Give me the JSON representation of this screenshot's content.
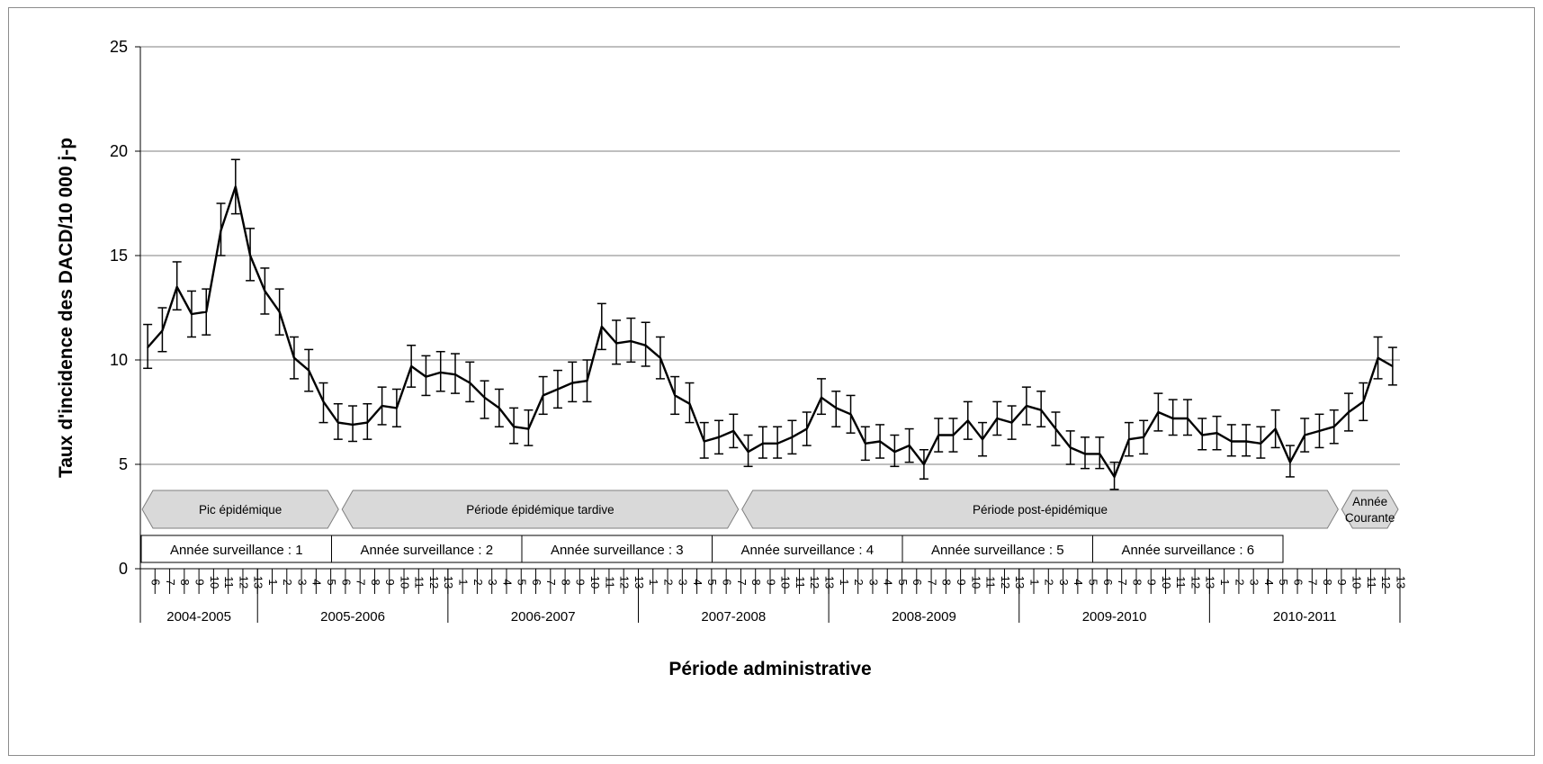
{
  "chart_data": {
    "type": "line",
    "title": "",
    "ylabel": "Taux d'incidence des  DACD/10 000 j-p",
    "xlabel": "Période administrative",
    "ylim": [
      0,
      25
    ],
    "yticks": [
      0,
      5,
      10,
      15,
      20,
      25
    ],
    "grid": true,
    "error_bars": true,
    "years": [
      {
        "label": "2004-2005",
        "periods": [
          "6",
          "7",
          "8",
          "9",
          "10",
          "11",
          "12",
          "13"
        ]
      },
      {
        "label": "2005-2006",
        "periods": [
          "1",
          "2",
          "3",
          "4",
          "5",
          "6",
          "7",
          "8",
          "9",
          "10",
          "11",
          "12",
          "13"
        ]
      },
      {
        "label": "2006-2007",
        "periods": [
          "1",
          "2",
          "3",
          "4",
          "5",
          "6",
          "7",
          "8",
          "9",
          "10",
          "11",
          "12",
          "13"
        ]
      },
      {
        "label": "2007-2008",
        "periods": [
          "1",
          "2",
          "3",
          "4",
          "5",
          "6",
          "7",
          "8",
          "9",
          "10",
          "11",
          "12",
          "13"
        ]
      },
      {
        "label": "2008-2009",
        "periods": [
          "1",
          "2",
          "3",
          "4",
          "5",
          "6",
          "7",
          "8",
          "9",
          "10",
          "11",
          "12",
          "13"
        ]
      },
      {
        "label": "2009-2010",
        "periods": [
          "1",
          "2",
          "3",
          "4",
          "5",
          "6",
          "7",
          "8",
          "9",
          "10",
          "11",
          "12",
          "13"
        ]
      },
      {
        "label": "2010-2011",
        "periods": [
          "1",
          "2",
          "3",
          "4",
          "5",
          "6",
          "7",
          "8",
          "9",
          "10",
          "11",
          "12",
          "13"
        ]
      }
    ],
    "values": [
      10.6,
      11.4,
      13.5,
      12.2,
      12.3,
      16.2,
      18.3,
      15.0,
      13.3,
      12.3,
      10.1,
      9.5,
      8.0,
      7.0,
      6.9,
      7.0,
      7.8,
      7.7,
      9.7,
      9.2,
      9.4,
      9.3,
      8.9,
      8.2,
      7.7,
      6.8,
      6.7,
      8.3,
      8.6,
      8.9,
      9.0,
      11.6,
      10.8,
      10.9,
      10.7,
      10.1,
      8.3,
      7.9,
      6.1,
      6.3,
      6.6,
      5.6,
      6.0,
      6.0,
      6.3,
      6.7,
      8.2,
      7.7,
      7.4,
      6.0,
      6.1,
      5.6,
      5.9,
      5.0,
      6.4,
      6.4,
      7.1,
      6.2,
      7.2,
      7.0,
      7.8,
      7.6,
      6.7,
      5.8,
      5.5,
      5.5,
      4.4,
      6.2,
      6.3,
      7.5,
      7.2,
      7.2,
      6.4,
      6.5,
      6.1,
      6.1,
      6.0,
      6.7,
      5.1,
      6.4,
      6.6,
      6.8,
      7.5,
      8.0,
      10.1,
      9.7
    ],
    "err_low": [
      9.6,
      10.4,
      12.4,
      11.1,
      11.2,
      15.0,
      17.0,
      13.8,
      12.2,
      11.2,
      9.1,
      8.5,
      7.0,
      6.2,
      6.1,
      6.2,
      6.9,
      6.8,
      8.7,
      8.3,
      8.5,
      8.4,
      8.0,
      7.2,
      6.8,
      6.0,
      5.9,
      7.4,
      7.7,
      8.0,
      8.0,
      10.5,
      9.8,
      9.9,
      9.7,
      9.1,
      7.4,
      7.0,
      5.3,
      5.5,
      5.8,
      4.9,
      5.3,
      5.3,
      5.5,
      5.9,
      7.4,
      6.8,
      6.5,
      5.2,
      5.3,
      4.9,
      5.1,
      4.3,
      5.6,
      5.6,
      6.2,
      5.4,
      6.4,
      6.2,
      6.9,
      6.8,
      5.9,
      5.0,
      4.8,
      4.8,
      3.8,
      5.4,
      5.5,
      6.6,
      6.4,
      6.4,
      5.7,
      5.7,
      5.4,
      5.4,
      5.3,
      5.8,
      4.4,
      5.6,
      5.8,
      6.0,
      6.6,
      7.1,
      9.1,
      8.8
    ],
    "err_high": [
      11.7,
      12.5,
      14.7,
      13.3,
      13.4,
      17.5,
      19.6,
      16.3,
      14.4,
      13.4,
      11.1,
      10.5,
      8.9,
      7.9,
      7.8,
      7.9,
      8.7,
      8.6,
      10.7,
      10.2,
      10.4,
      10.3,
      9.9,
      9.0,
      8.6,
      7.7,
      7.6,
      9.2,
      9.5,
      9.9,
      10.0,
      12.7,
      11.9,
      12.0,
      11.8,
      11.1,
      9.2,
      8.9,
      7.0,
      7.1,
      7.4,
      6.4,
      6.8,
      6.8,
      7.1,
      7.5,
      9.1,
      8.5,
      8.3,
      6.8,
      6.9,
      6.4,
      6.7,
      5.7,
      7.2,
      7.2,
      8.0,
      7.0,
      8.0,
      7.8,
      8.7,
      8.5,
      7.5,
      6.6,
      6.3,
      6.3,
      5.1,
      7.0,
      7.1,
      8.4,
      8.1,
      8.1,
      7.2,
      7.3,
      6.9,
      6.9,
      6.8,
      7.6,
      5.9,
      7.2,
      7.4,
      7.6,
      8.4,
      8.9,
      11.1,
      10.6
    ],
    "phases": [
      {
        "label": "Pic épidémique",
        "start": 0,
        "end": 10
      },
      {
        "label": "Période épidémique tardive",
        "start": 10,
        "end": 30
      },
      {
        "label": "Période post-épidémique",
        "start": 30,
        "end": 60
      },
      {
        "label": "Année Courante",
        "start": 60,
        "end": 63
      }
    ],
    "surveillance_years": [
      {
        "label": "Année surveillance : 1",
        "start": 0,
        "end": 5
      },
      {
        "label": "Année surveillance : 2",
        "start": 5,
        "end": 10
      },
      {
        "label": "Année surveillance : 3",
        "start": 10,
        "end": 15
      },
      {
        "label": "Année surveillance : 4",
        "start": 15,
        "end": 20
      },
      {
        "label": "Année surveillance : 5",
        "start": 20,
        "end": 25
      },
      {
        "label": "Année surveillance : 6",
        "start": 25,
        "end": 30
      }
    ],
    "colors": {
      "line": "#000000",
      "grid": "#7f7f7f",
      "phase_fill": "#d9d9d9",
      "phase_stroke": "#7f7f7f"
    }
  }
}
